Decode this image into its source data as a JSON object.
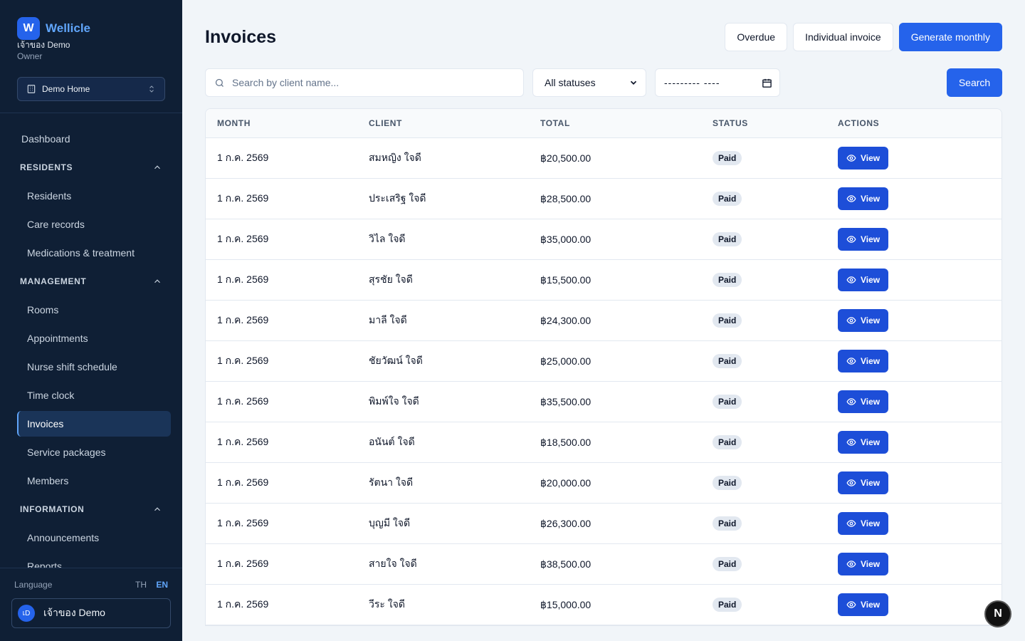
{
  "brand": {
    "logo_letter": "W",
    "name": "Wellicle"
  },
  "user": {
    "name": "เจ้าของ Demo",
    "role": "Owner",
    "avatar_initials": "เD"
  },
  "home_selector": {
    "label": "Demo Home",
    "icon": "building-icon"
  },
  "nav": {
    "dashboard": "Dashboard",
    "sections": [
      {
        "title": "RESIDENTS",
        "items": [
          "Residents",
          "Care records",
          "Medications & treatment"
        ]
      },
      {
        "title": "MANAGEMENT",
        "items": [
          "Rooms",
          "Appointments",
          "Nurse shift schedule",
          "Time clock",
          "Invoices",
          "Service packages",
          "Members"
        ]
      },
      {
        "title": "INFORMATION",
        "items": [
          "Announcements",
          "Reports"
        ]
      }
    ],
    "active": "Invoices"
  },
  "footer": {
    "language_label": "Language",
    "lang_th": "TH",
    "lang_en": "EN",
    "active_lang": "EN"
  },
  "page": {
    "title": "Invoices"
  },
  "header_actions": {
    "overdue": "Overdue",
    "individual": "Individual invoice",
    "generate": "Generate monthly"
  },
  "filters": {
    "search_placeholder": "Search by client name...",
    "status_value": "All statuses",
    "date_value": "--------- ----",
    "search_button": "Search"
  },
  "table": {
    "columns": {
      "month": "MONTH",
      "client": "CLIENT",
      "total": "TOTAL",
      "status": "STATUS",
      "actions": "ACTIONS"
    },
    "view_label": "View",
    "rows": [
      {
        "month": "1 ก.ค. 2569",
        "client": "สมหญิง ใจดี",
        "total": "฿20,500.00",
        "status": "Paid"
      },
      {
        "month": "1 ก.ค. 2569",
        "client": "ประเสริฐ ใจดี",
        "total": "฿28,500.00",
        "status": "Paid"
      },
      {
        "month": "1 ก.ค. 2569",
        "client": "วิไล ใจดี",
        "total": "฿35,000.00",
        "status": "Paid"
      },
      {
        "month": "1 ก.ค. 2569",
        "client": "สุรชัย ใจดี",
        "total": "฿15,500.00",
        "status": "Paid"
      },
      {
        "month": "1 ก.ค. 2569",
        "client": "มาลี ใจดี",
        "total": "฿24,300.00",
        "status": "Paid"
      },
      {
        "month": "1 ก.ค. 2569",
        "client": "ชัยวัฒน์ ใจดี",
        "total": "฿25,000.00",
        "status": "Paid"
      },
      {
        "month": "1 ก.ค. 2569",
        "client": "พิมพ์ใจ ใจดี",
        "total": "฿35,500.00",
        "status": "Paid"
      },
      {
        "month": "1 ก.ค. 2569",
        "client": "อนันต์ ใจดี",
        "total": "฿18,500.00",
        "status": "Paid"
      },
      {
        "month": "1 ก.ค. 2569",
        "client": "รัตนา ใจดี",
        "total": "฿20,000.00",
        "status": "Paid"
      },
      {
        "month": "1 ก.ค. 2569",
        "client": "บุญมี ใจดี",
        "total": "฿26,300.00",
        "status": "Paid"
      },
      {
        "month": "1 ก.ค. 2569",
        "client": "สายใจ ใจดี",
        "total": "฿38,500.00",
        "status": "Paid"
      },
      {
        "month": "1 ก.ค. 2569",
        "client": "วีระ ใจดี",
        "total": "฿15,000.00",
        "status": "Paid"
      }
    ]
  },
  "fab": {
    "label": "N"
  }
}
